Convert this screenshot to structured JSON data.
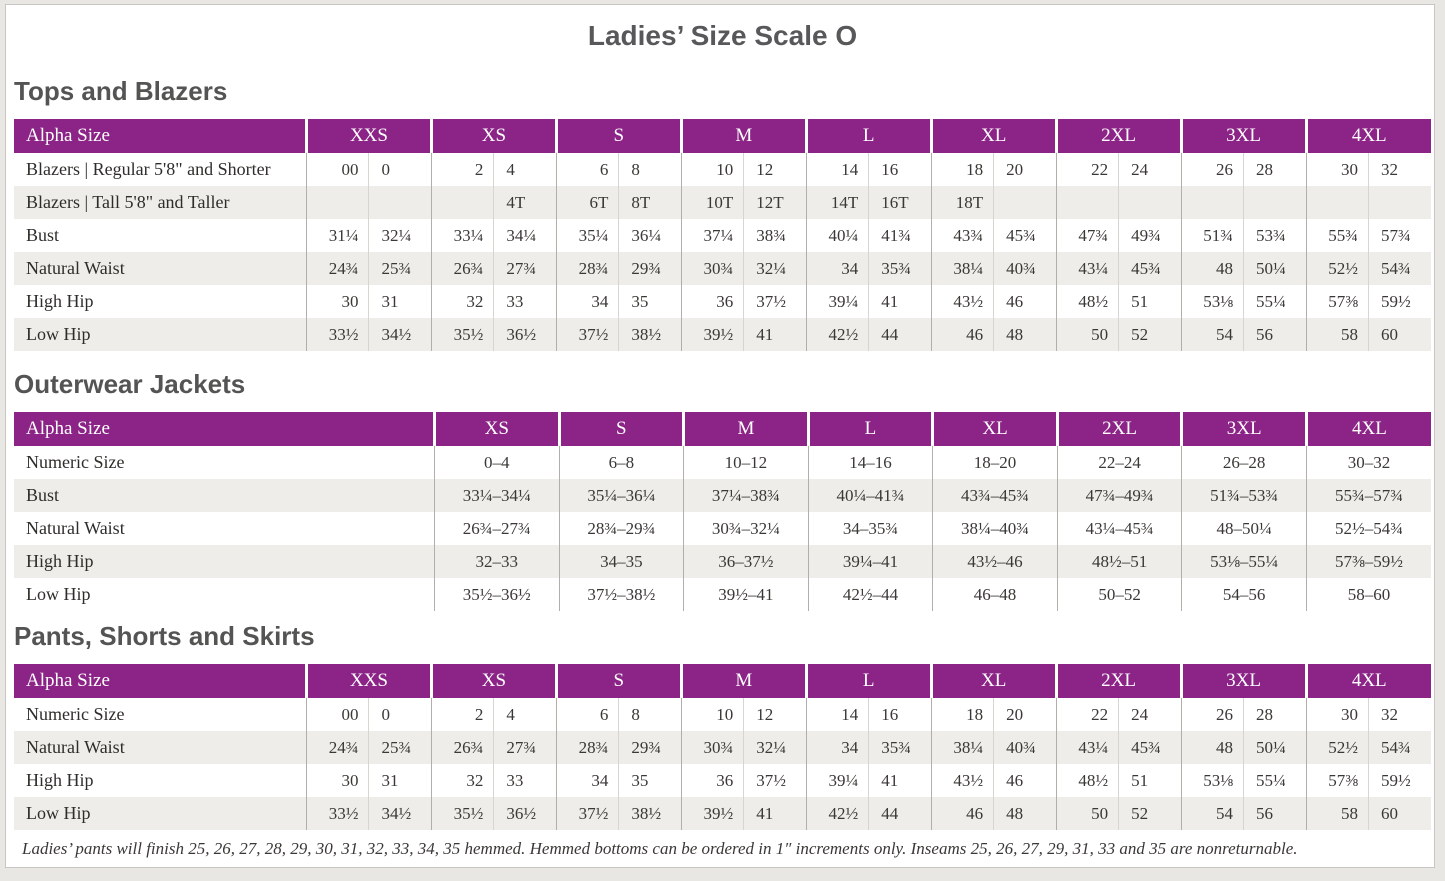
{
  "page_title": "Ladies’ Size Scale O",
  "colors": {
    "header_purple": "#8c2487",
    "row_stripe": "#efedea",
    "heading_gray": "#58585a"
  },
  "sections": [
    {
      "heading": "Tops and Blazers",
      "type": "paired",
      "label_header": "Alpha Size",
      "sizes": [
        "XXS",
        "XS",
        "S",
        "M",
        "L",
        "XL",
        "2XL",
        "3XL",
        "4XL"
      ],
      "rows": [
        {
          "label": "Blazers | Regular 5'8\" and Shorter",
          "pairs": [
            [
              "00",
              "0"
            ],
            [
              "2",
              "4"
            ],
            [
              "6",
              "8"
            ],
            [
              "10",
              "12"
            ],
            [
              "14",
              "16"
            ],
            [
              "18",
              "20"
            ],
            [
              "22",
              "24"
            ],
            [
              "26",
              "28"
            ],
            [
              "30",
              "32"
            ]
          ]
        },
        {
          "label": "Blazers | Tall 5'8\" and Taller",
          "pairs": [
            [
              "",
              ""
            ],
            [
              "",
              "4T"
            ],
            [
              "6T",
              "8T"
            ],
            [
              "10T",
              "12T"
            ],
            [
              "14T",
              "16T"
            ],
            [
              "18T",
              ""
            ],
            [
              "",
              ""
            ],
            [
              "",
              ""
            ],
            [
              "",
              ""
            ]
          ]
        },
        {
          "label": "Bust",
          "pairs": [
            [
              "31¼",
              "32¼"
            ],
            [
              "33¼",
              "34¼"
            ],
            [
              "35¼",
              "36¼"
            ],
            [
              "37¼",
              "38¾"
            ],
            [
              "40¼",
              "41¾"
            ],
            [
              "43¾",
              "45¾"
            ],
            [
              "47¾",
              "49¾"
            ],
            [
              "51¾",
              "53¾"
            ],
            [
              "55¾",
              "57¾"
            ]
          ]
        },
        {
          "label": "Natural Waist",
          "pairs": [
            [
              "24¾",
              "25¾"
            ],
            [
              "26¾",
              "27¾"
            ],
            [
              "28¾",
              "29¾"
            ],
            [
              "30¾",
              "32¼"
            ],
            [
              "34",
              "35¾"
            ],
            [
              "38¼",
              "40¾"
            ],
            [
              "43¼",
              "45¾"
            ],
            [
              "48",
              "50¼"
            ],
            [
              "52½",
              "54¾"
            ]
          ]
        },
        {
          "label": "High Hip",
          "pairs": [
            [
              "30",
              "31"
            ],
            [
              "32",
              "33"
            ],
            [
              "34",
              "35"
            ],
            [
              "36",
              "37½"
            ],
            [
              "39¼",
              "41"
            ],
            [
              "43½",
              "46"
            ],
            [
              "48½",
              "51"
            ],
            [
              "53⅛",
              "55¼"
            ],
            [
              "57⅜",
              "59½"
            ]
          ]
        },
        {
          "label": "Low Hip",
          "pairs": [
            [
              "33½",
              "34½"
            ],
            [
              "35½",
              "36½"
            ],
            [
              "37½",
              "38½"
            ],
            [
              "39½",
              "41"
            ],
            [
              "42½",
              "44"
            ],
            [
              "46",
              "48"
            ],
            [
              "50",
              "52"
            ],
            [
              "54",
              "56"
            ],
            [
              "58",
              "60"
            ]
          ]
        }
      ]
    },
    {
      "heading": "Outerwear Jackets",
      "type": "single",
      "label_header": "Alpha Size",
      "sizes": [
        "XS",
        "S",
        "M",
        "L",
        "XL",
        "2XL",
        "3XL",
        "4XL"
      ],
      "rows": [
        {
          "label": "Numeric Size",
          "values": [
            "0–4",
            "6–8",
            "10–12",
            "14–16",
            "18–20",
            "22–24",
            "26–28",
            "30–32"
          ]
        },
        {
          "label": "Bust",
          "values": [
            "33¼–34¼",
            "35¼–36¼",
            "37¼–38¾",
            "40¼–41¾",
            "43¾–45¾",
            "47¾–49¾",
            "51¾–53¾",
            "55¾–57¾"
          ]
        },
        {
          "label": "Natural Waist",
          "values": [
            "26¾–27¾",
            "28¾–29¾",
            "30¾–32¼",
            "34–35¾",
            "38¼–40¾",
            "43¼–45¾",
            "48–50¼",
            "52½–54¾"
          ]
        },
        {
          "label": "High Hip",
          "values": [
            "32–33",
            "34–35",
            "36–37½",
            "39¼–41",
            "43½–46",
            "48½–51",
            "53⅛–55¼",
            "57⅜–59½"
          ]
        },
        {
          "label": "Low Hip",
          "values": [
            "35½–36½",
            "37½–38½",
            "39½–41",
            "42½–44",
            "46–48",
            "50–52",
            "54–56",
            "58–60"
          ]
        }
      ]
    },
    {
      "heading": "Pants, Shorts and Skirts",
      "type": "paired",
      "label_header": "Alpha Size",
      "sizes": [
        "XXS",
        "XS",
        "S",
        "M",
        "L",
        "XL",
        "2XL",
        "3XL",
        "4XL"
      ],
      "rows": [
        {
          "label": "Numeric Size",
          "pairs": [
            [
              "00",
              "0"
            ],
            [
              "2",
              "4"
            ],
            [
              "6",
              "8"
            ],
            [
              "10",
              "12"
            ],
            [
              "14",
              "16"
            ],
            [
              "18",
              "20"
            ],
            [
              "22",
              "24"
            ],
            [
              "26",
              "28"
            ],
            [
              "30",
              "32"
            ]
          ]
        },
        {
          "label": "Natural Waist",
          "pairs": [
            [
              "24¾",
              "25¾"
            ],
            [
              "26¾",
              "27¾"
            ],
            [
              "28¾",
              "29¾"
            ],
            [
              "30¾",
              "32¼"
            ],
            [
              "34",
              "35¾"
            ],
            [
              "38¼",
              "40¾"
            ],
            [
              "43¼",
              "45¾"
            ],
            [
              "48",
              "50¼"
            ],
            [
              "52½",
              "54¾"
            ]
          ]
        },
        {
          "label": "High Hip",
          "pairs": [
            [
              "30",
              "31"
            ],
            [
              "32",
              "33"
            ],
            [
              "34",
              "35"
            ],
            [
              "36",
              "37½"
            ],
            [
              "39¼",
              "41"
            ],
            [
              "43½",
              "46"
            ],
            [
              "48½",
              "51"
            ],
            [
              "53⅛",
              "55¼"
            ],
            [
              "57⅜",
              "59½"
            ]
          ]
        },
        {
          "label": "Low Hip",
          "pairs": [
            [
              "33½",
              "34½"
            ],
            [
              "35½",
              "36½"
            ],
            [
              "37½",
              "38½"
            ],
            [
              "39½",
              "41"
            ],
            [
              "42½",
              "44"
            ],
            [
              "46",
              "48"
            ],
            [
              "50",
              "52"
            ],
            [
              "54",
              "56"
            ],
            [
              "58",
              "60"
            ]
          ]
        }
      ]
    }
  ],
  "footnote": "Ladies’ pants will finish 25, 26, 27, 28, 29, 30, 31, 32, 33, 34, 35 hemmed. Hemmed bottoms can be ordered in 1″ increments only. Inseams 25, 26, 27, 29, 31, 33 and 35 are nonreturnable."
}
